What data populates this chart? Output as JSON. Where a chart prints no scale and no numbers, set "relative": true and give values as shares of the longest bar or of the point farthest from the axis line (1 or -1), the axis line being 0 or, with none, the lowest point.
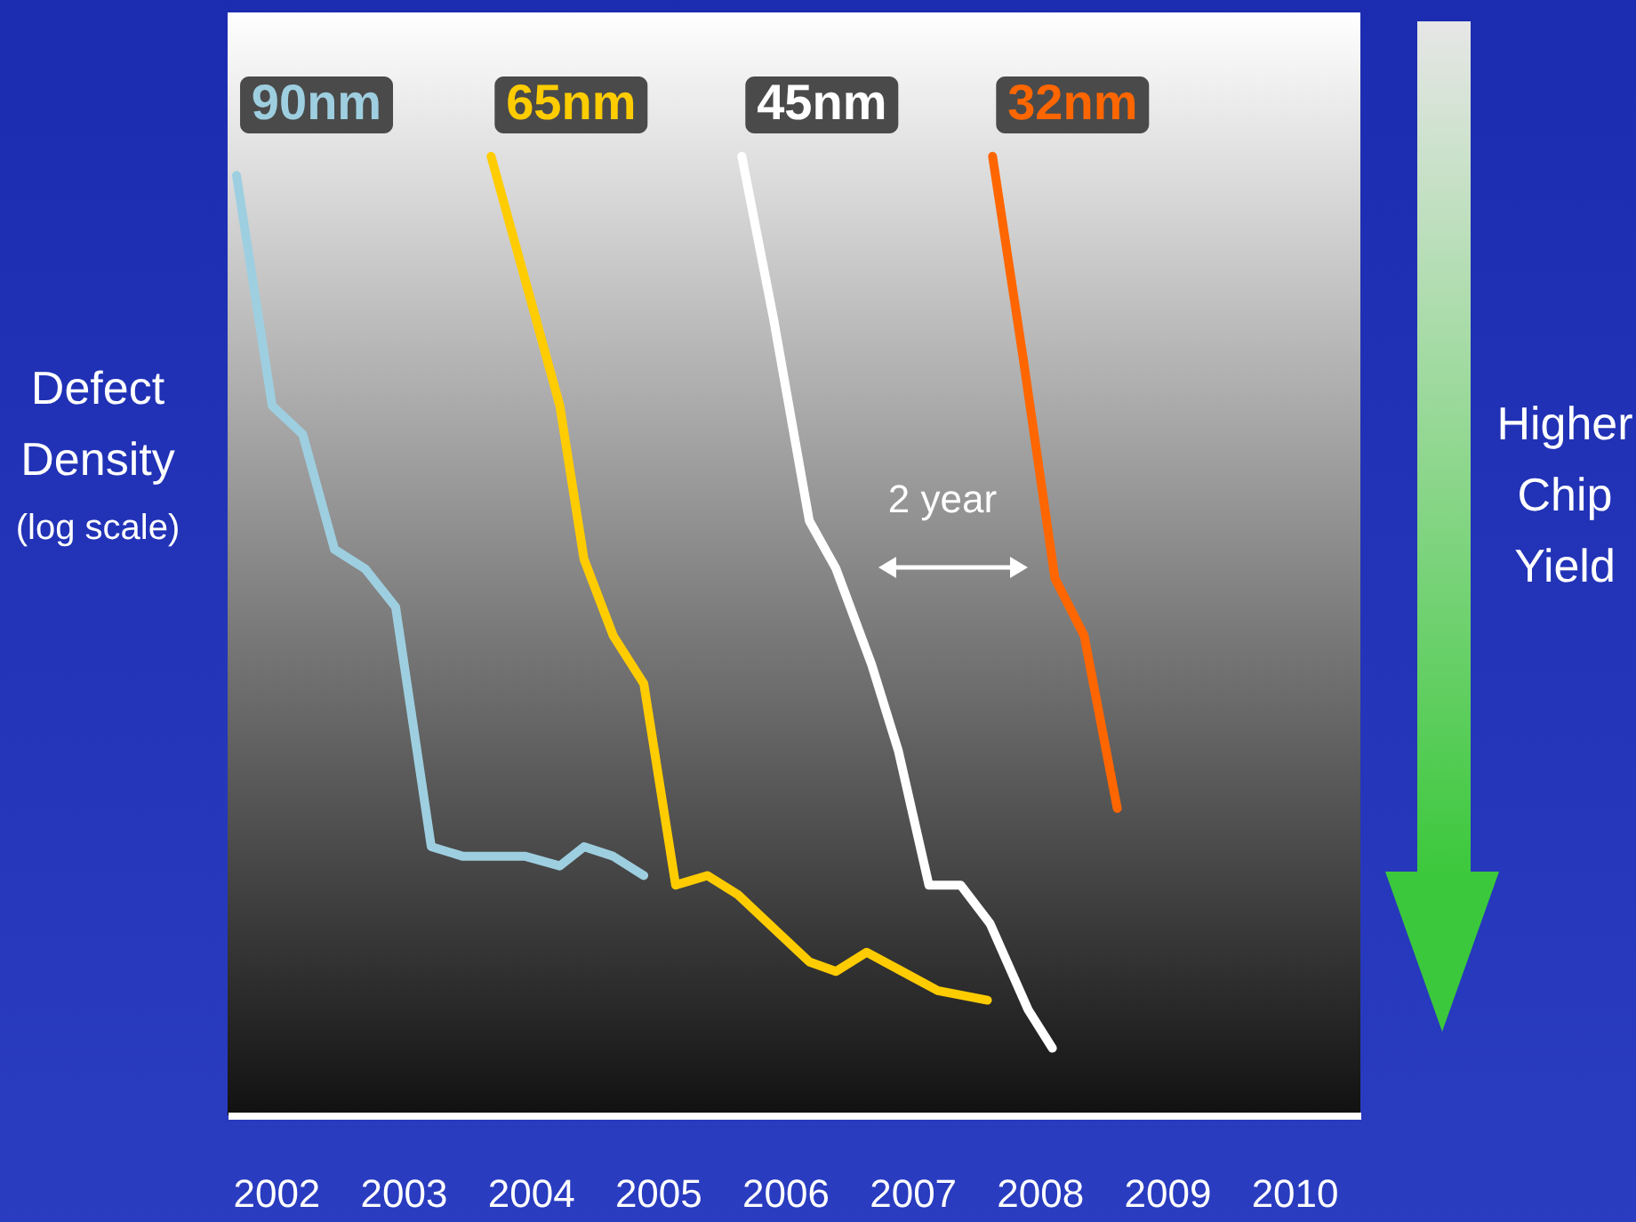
{
  "chart_data": {
    "type": "line",
    "relative": true,
    "ylabel": "Defect Density",
    "annotations": [
      "(log scale)",
      "2 year",
      "Higher Chip Yield"
    ],
    "xlim": [
      2001.62,
      2010.52
    ],
    "xticks": [
      2002,
      2003,
      2004,
      2005,
      2006,
      2007,
      2008,
      2009,
      2010
    ],
    "grid": false,
    "marker": "none",
    "series": [
      {
        "name": "90nm",
        "color": "#9ecfe0",
        "x": [
          2001.69,
          2001.97,
          2002.21,
          2002.46,
          2002.7,
          2002.94,
          2003.22,
          2003.47,
          2003.96,
          2004.23,
          2004.42,
          2004.65,
          2004.89
        ],
        "values": [
          0.98,
          0.74,
          0.71,
          0.59,
          0.57,
          0.53,
          0.28,
          0.27,
          0.27,
          0.26,
          0.28,
          0.27,
          0.25
        ]
      },
      {
        "name": "65nm",
        "color": "#ffcc00",
        "x": [
          2003.69,
          2003.96,
          2004.23,
          2004.42,
          2004.65,
          2004.89,
          2005.14,
          2005.39,
          2005.63,
          2005.95,
          2006.19,
          2006.4,
          2006.64,
          2006.92,
          2007.2,
          2007.59
        ],
        "values": [
          1,
          0.87,
          0.74,
          0.58,
          0.5,
          0.45,
          0.24,
          0.25,
          0.23,
          0.19,
          0.16,
          0.15,
          0.17,
          0.15,
          0.13,
          0.12
        ]
      },
      {
        "name": "45nm",
        "color": "#ffffff",
        "x": [
          2005.66,
          2005.91,
          2006.19,
          2006.4,
          2006.68,
          2006.89,
          2007.13,
          2007.38,
          2007.61,
          2007.91,
          2008.1
        ],
        "values": [
          1,
          0.83,
          0.62,
          0.57,
          0.47,
          0.38,
          0.24,
          0.24,
          0.2,
          0.11,
          0.07
        ]
      },
      {
        "name": "32nm",
        "color": "#ff6600",
        "x": [
          2007.63,
          2007.87,
          2008.12,
          2008.35,
          2008.61
        ],
        "values": [
          1,
          0.79,
          0.56,
          0.5,
          0.32
        ]
      }
    ]
  }
}
